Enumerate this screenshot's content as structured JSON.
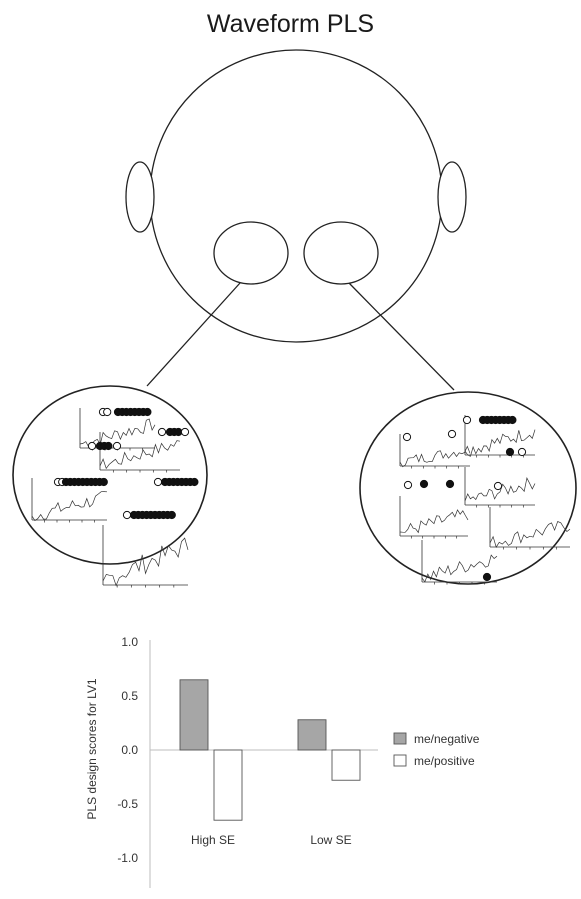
{
  "title": "Waveform PLS",
  "diagram": {
    "head": "head-outline",
    "connectors": [
      "left-region-to-left-inset",
      "right-region-to-right-inset"
    ]
  },
  "colors": {
    "line": "#222222",
    "negative_bar": "#a6a6a6",
    "positive_bar": "#ffffff",
    "axis": "#bdbdbd"
  },
  "chart_data": {
    "type": "bar",
    "categories": [
      "High SE",
      "Low SE"
    ],
    "series": [
      {
        "name": "me/negative",
        "values": [
          0.65,
          0.28
        ],
        "color": "#a6a6a6"
      },
      {
        "name": "me/positive",
        "values": [
          -0.65,
          -0.28
        ],
        "color": "#ffffff"
      }
    ],
    "ylabel": "PLS design scores for LV1",
    "ylim": [
      -1.0,
      1.0
    ],
    "yticks": [
      1.0,
      0.5,
      0.0,
      -0.5,
      -1.0
    ],
    "ytick_labels": [
      "1.0",
      "0.5",
      "0.0",
      "-0.5",
      "-1.0"
    ],
    "grid": false,
    "legend": "right"
  }
}
